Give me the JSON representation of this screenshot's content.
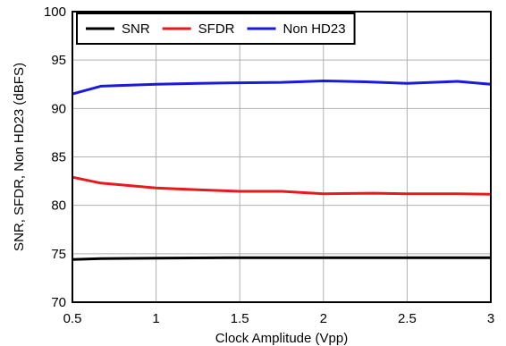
{
  "chart_data": {
    "type": "line",
    "title": "",
    "xlabel": "Clock Amplitude (Vpp)",
    "ylabel": "SNR, SFDR, Non HD23 (dBFS)",
    "xlim": [
      0.5,
      3
    ],
    "ylim": [
      70,
      100
    ],
    "x_ticks": [
      "0.5",
      "1",
      "1.5",
      "2",
      "2.5",
      "3"
    ],
    "y_ticks": [
      "70",
      "75",
      "80",
      "85",
      "90",
      "95",
      "100"
    ],
    "grid": true,
    "legend_position": "top-left",
    "series": [
      {
        "name": "SNR",
        "color": "#000000",
        "x": [
          0.5,
          0.67,
          1.0,
          1.5,
          2.0,
          2.5,
          3.0
        ],
        "y": [
          74.4,
          74.5,
          74.55,
          74.6,
          74.6,
          74.6,
          74.6
        ]
      },
      {
        "name": "SFDR",
        "color": "#e8191d",
        "x": [
          0.5,
          0.67,
          1.0,
          1.25,
          1.5,
          1.75,
          2.0,
          2.3,
          2.5,
          2.8,
          3.0
        ],
        "y": [
          82.9,
          82.3,
          81.8,
          81.6,
          81.45,
          81.45,
          81.2,
          81.25,
          81.2,
          81.2,
          81.15
        ]
      },
      {
        "name": "Non HD23",
        "color": "#1a1adc",
        "x": [
          0.5,
          0.67,
          1.0,
          1.25,
          1.5,
          1.75,
          2.0,
          2.25,
          2.5,
          2.8,
          3.0
        ],
        "y": [
          91.5,
          92.3,
          92.5,
          92.6,
          92.65,
          92.7,
          92.85,
          92.75,
          92.6,
          92.8,
          92.5
        ]
      }
    ]
  }
}
